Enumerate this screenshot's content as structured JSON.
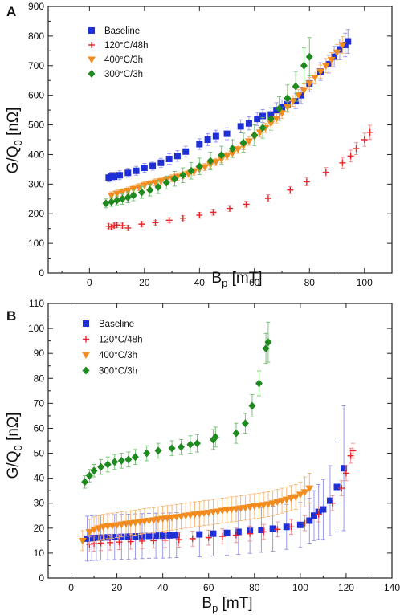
{
  "colors": {
    "Baseline": "#1f2fd6",
    "120°C/48h": "#e8262a",
    "400°C/3h": "#f28c1e",
    "300°C/3h": "#1f8a1f"
  },
  "chart_data": [
    {
      "type": "scatter",
      "panel": "A",
      "xlabel_main": "B",
      "xlabel_sub": "p",
      "xlabel_unit": "[mT]",
      "ylabel_main": "G/Q",
      "ylabel_sub": "0",
      "ylabel_unit": "[nΩ]",
      "xlim": [
        -15,
        110
      ],
      "ylim": [
        0,
        900
      ],
      "xticks": [
        0,
        20,
        40,
        60,
        80,
        100
      ],
      "yticks": [
        0,
        100,
        200,
        300,
        400,
        500,
        600,
        700,
        800,
        900
      ],
      "legend_position": "top-left",
      "series": [
        {
          "name": "Baseline",
          "marker": "square",
          "color": "#1f2fd6",
          "x": [
            7,
            8,
            9,
            11,
            14,
            17,
            20,
            23,
            26,
            29,
            32,
            35,
            40,
            43,
            46,
            50,
            55,
            58,
            61,
            63,
            66,
            68,
            70,
            72,
            75,
            77,
            80,
            84,
            87,
            89,
            91,
            93,
            94
          ],
          "y": [
            322,
            325,
            325,
            330,
            338,
            345,
            355,
            362,
            372,
            385,
            395,
            410,
            435,
            450,
            462,
            470,
            495,
            505,
            520,
            530,
            535,
            550,
            560,
            570,
            580,
            600,
            640,
            680,
            705,
            730,
            755,
            770,
            782
          ],
          "err": [
            15,
            15,
            15,
            15,
            15,
            15,
            15,
            15,
            15,
            18,
            18,
            18,
            18,
            20,
            20,
            20,
            22,
            22,
            22,
            22,
            22,
            25,
            25,
            25,
            25,
            28,
            28,
            30,
            30,
            35,
            35,
            40,
            40
          ]
        },
        {
          "name": "120°C/48h",
          "marker": "plus",
          "color": "#e8262a",
          "x": [
            7,
            8,
            9,
            10,
            12,
            14,
            19,
            24,
            29,
            34,
            40,
            45,
            51,
            57,
            65,
            73,
            79,
            86,
            92,
            95,
            97,
            100,
            102
          ],
          "y": [
            158,
            155,
            160,
            162,
            160,
            152,
            165,
            170,
            178,
            185,
            195,
            205,
            218,
            232,
            252,
            280,
            308,
            340,
            372,
            395,
            420,
            450,
            475
          ],
          "err": [
            8,
            8,
            8,
            8,
            8,
            8,
            8,
            8,
            8,
            8,
            10,
            10,
            10,
            10,
            12,
            12,
            14,
            16,
            18,
            20,
            20,
            22,
            24
          ]
        },
        {
          "name": "400°C/3h",
          "marker": "triangle-down",
          "color": "#f28c1e",
          "x": [
            8,
            10,
            12,
            14,
            16,
            18,
            20,
            22,
            24,
            26,
            28,
            30,
            32,
            34,
            36,
            38,
            40,
            42,
            44,
            46,
            48,
            50,
            52,
            54,
            56,
            58,
            60,
            62,
            64,
            66,
            68,
            70,
            72,
            74,
            76,
            78,
            80,
            82,
            84,
            86,
            88,
            90,
            92
          ],
          "y": [
            262,
            268,
            272,
            278,
            284,
            290,
            296,
            300,
            306,
            310,
            315,
            320,
            325,
            330,
            335,
            342,
            350,
            358,
            366,
            375,
            385,
            395,
            405,
            418,
            430,
            445,
            460,
            475,
            490,
            505,
            522,
            540,
            560,
            580,
            600,
            618,
            640,
            660,
            680,
            700,
            720,
            745,
            770
          ],
          "err": [
            12,
            12,
            12,
            12,
            12,
            12,
            12,
            12,
            12,
            12,
            12,
            12,
            12,
            12,
            12,
            12,
            12,
            12,
            12,
            12,
            12,
            12,
            14,
            14,
            14,
            14,
            14,
            16,
            16,
            16,
            16,
            18,
            18,
            18,
            20,
            20,
            20,
            22,
            22,
            24,
            24,
            26,
            28
          ]
        },
        {
          "name": "300°C/3h",
          "marker": "diamond",
          "color": "#1f8a1f",
          "x": [
            6,
            8,
            10,
            12,
            14,
            16,
            19,
            22,
            25,
            28,
            31,
            34,
            37,
            40,
            44,
            48,
            52,
            56,
            60,
            63,
            66,
            69,
            72,
            75,
            78,
            80
          ],
          "y": [
            235,
            240,
            245,
            250,
            255,
            262,
            272,
            280,
            290,
            305,
            318,
            330,
            345,
            360,
            378,
            398,
            420,
            440,
            465,
            490,
            520,
            555,
            590,
            630,
            700,
            730
          ],
          "err": [
            15,
            15,
            15,
            18,
            18,
            18,
            20,
            20,
            22,
            22,
            25,
            25,
            28,
            28,
            30,
            30,
            30,
            32,
            35,
            35,
            38,
            40,
            45,
            50,
            60,
            65
          ]
        }
      ]
    },
    {
      "type": "scatter",
      "panel": "B",
      "xlabel_main": "B",
      "xlabel_sub": "p",
      "xlabel_unit": "[mT]",
      "ylabel_main": "G/Q",
      "ylabel_sub": "0",
      "ylabel_unit": "[nΩ]",
      "xlim": [
        -10,
        140
      ],
      "ylim": [
        0,
        110
      ],
      "xticks": [
        0,
        20,
        40,
        60,
        80,
        100,
        120,
        140
      ],
      "yticks": [
        0,
        10,
        20,
        30,
        40,
        50,
        60,
        70,
        80,
        90,
        100,
        110
      ],
      "legend_position": "top-left",
      "series": [
        {
          "name": "Baseline",
          "marker": "square",
          "color": "#1f2fd6",
          "x": [
            7,
            9,
            11,
            13,
            16,
            19,
            22,
            25,
            28,
            31,
            34,
            37,
            40,
            43,
            46,
            56,
            62,
            68,
            73,
            78,
            83,
            88,
            94,
            100,
            104,
            106,
            108,
            110,
            113,
            116,
            119
          ],
          "y": [
            15.8,
            16,
            16.1,
            16.2,
            16.3,
            16.4,
            16.5,
            16.6,
            16.7,
            16.8,
            16.9,
            17,
            17,
            17.1,
            17.2,
            17.5,
            17.8,
            18.1,
            18.5,
            18.9,
            19.3,
            19.8,
            20.5,
            21.3,
            23,
            25,
            26.5,
            27.5,
            31,
            36.5,
            44
          ],
          "err": [
            9,
            9,
            9,
            9,
            9,
            9,
            9,
            9,
            9,
            9,
            9,
            9,
            9,
            9,
            9,
            9,
            9,
            9,
            9,
            9,
            9,
            9,
            9,
            9,
            9,
            10,
            11,
            12,
            14,
            18,
            25
          ]
        },
        {
          "name": "120°C/48h",
          "marker": "plus",
          "color": "#e8262a",
          "x": [
            8,
            10,
            13,
            17,
            21,
            26,
            31,
            36,
            41,
            47,
            53,
            60,
            66,
            72,
            78,
            84,
            90,
            96,
            102,
            108,
            114,
            118,
            120,
            122,
            123
          ],
          "y": [
            13.5,
            13.8,
            14,
            14.2,
            14.4,
            14.6,
            14.8,
            15,
            15.2,
            15.4,
            15.8,
            16.2,
            16.7,
            17.2,
            17.8,
            18.5,
            19.5,
            20.5,
            22,
            25.5,
            30,
            36,
            42,
            49,
            51
          ],
          "err": [
            3,
            3,
            3,
            3,
            3,
            3,
            3,
            3,
            3,
            3,
            3,
            3,
            3,
            3,
            3,
            3,
            3,
            3,
            3,
            3,
            3,
            3,
            3,
            3,
            3
          ]
        },
        {
          "name": "400°C/3h",
          "marker": "triangle-down",
          "color": "#f28c1e",
          "x": [
            5,
            8,
            10,
            12,
            14,
            16,
            18,
            20,
            22,
            24,
            26,
            28,
            30,
            32,
            34,
            36,
            38,
            40,
            42,
            44,
            46,
            48,
            50,
            52,
            54,
            56,
            58,
            60,
            62,
            64,
            66,
            68,
            70,
            72,
            74,
            76,
            78,
            80,
            82,
            84,
            86,
            88,
            90,
            92,
            94,
            96,
            98,
            100,
            102,
            104
          ],
          "y": [
            15,
            18.5,
            19.5,
            20,
            20.5,
            20.8,
            21,
            21.2,
            21.5,
            21.8,
            22,
            22.2,
            22.5,
            22.8,
            23,
            23.2,
            23.5,
            23.8,
            24,
            24.2,
            24.5,
            24.7,
            25,
            25.2,
            25.5,
            25.7,
            26,
            26.2,
            26.5,
            26.7,
            27,
            27.2,
            27.5,
            27.7,
            28,
            28.2,
            28.5,
            28.8,
            29,
            29.3,
            29.6,
            30,
            30.5,
            31,
            31.5,
            32,
            32.5,
            33.5,
            34.5,
            36
          ],
          "err": [
            4,
            5,
            5,
            5,
            5,
            5,
            5,
            5,
            5,
            5,
            5,
            5,
            5,
            5,
            5,
            5,
            5,
            5,
            5,
            5,
            5,
            5,
            5,
            5,
            5,
            5,
            5,
            5,
            5,
            5,
            5,
            5,
            5,
            5,
            5,
            5,
            5,
            5,
            5,
            5,
            5,
            5,
            5,
            5,
            5,
            5,
            5,
            5,
            6,
            6
          ]
        },
        {
          "name": "300°C/3h",
          "marker": "diamond",
          "color": "#1f8a1f",
          "x": [
            6,
            8,
            10,
            13,
            16,
            19,
            22,
            25,
            28,
            33,
            38,
            44,
            48,
            52,
            55,
            62,
            63,
            72,
            76,
            79,
            82,
            85,
            86
          ],
          "y": [
            38.5,
            41,
            43,
            44.5,
            45.5,
            46.5,
            47,
            47.5,
            48.5,
            50,
            51,
            52,
            52.5,
            53.5,
            54,
            55.5,
            56.5,
            58,
            62,
            69,
            78,
            92,
            94.5
          ],
          "err": [
            2.5,
            2.5,
            2.5,
            3,
            3,
            3,
            3,
            3,
            3,
            3,
            3,
            3,
            3,
            3.5,
            3.5,
            4,
            4,
            4,
            4,
            4.5,
            5,
            6,
            8
          ]
        }
      ]
    }
  ]
}
